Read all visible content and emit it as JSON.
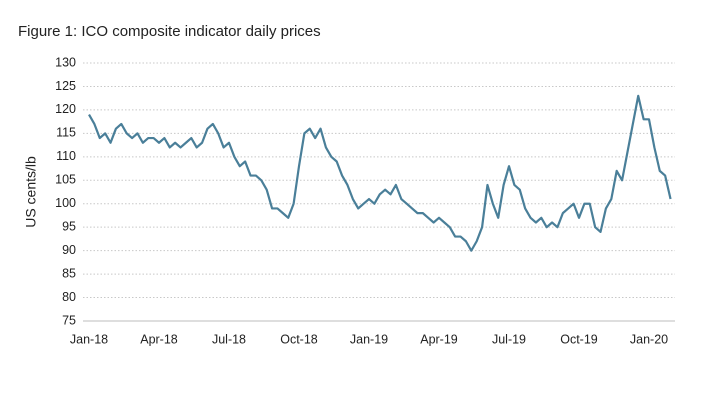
{
  "chart_data": {
    "type": "line",
    "title": "Figure 1: ICO composite indicator daily prices",
    "y_label": "US cents/lb",
    "categories": [
      "Jan-18",
      null,
      null,
      null,
      null,
      null,
      null,
      null,
      null,
      null,
      null,
      null,
      null,
      "Apr-18",
      null,
      null,
      null,
      null,
      null,
      null,
      null,
      null,
      null,
      null,
      null,
      null,
      "Jul-18",
      null,
      null,
      null,
      null,
      null,
      null,
      null,
      null,
      null,
      null,
      null,
      null,
      "Oct-18",
      null,
      null,
      null,
      null,
      null,
      null,
      null,
      null,
      null,
      null,
      null,
      null,
      "Jan-19",
      null,
      null,
      null,
      null,
      null,
      null,
      null,
      null,
      null,
      null,
      null,
      null,
      "Apr-19",
      null,
      null,
      null,
      null,
      null,
      null,
      null,
      null,
      null,
      null,
      null,
      null,
      "Jul-19",
      null,
      null,
      null,
      null,
      null,
      null,
      null,
      null,
      null,
      null,
      null,
      null,
      "Oct-19",
      null,
      null,
      null,
      null,
      null,
      null,
      null,
      null,
      null,
      null,
      null,
      null,
      "Jan-20",
      null,
      null,
      null,
      null
    ],
    "series": [
      {
        "name": "ICO composite indicator",
        "color": "#4a7f99",
        "values": [
          119,
          117,
          114,
          115,
          113,
          116,
          117,
          115,
          114,
          115,
          113,
          114,
          114,
          113,
          114,
          112,
          113,
          112,
          113,
          114,
          112,
          113,
          116,
          117,
          115,
          112,
          113,
          110,
          108,
          109,
          106,
          106,
          105,
          103,
          99,
          99,
          98,
          97,
          100,
          108,
          115,
          116,
          114,
          116,
          112,
          110,
          109,
          106,
          104,
          101,
          99,
          100,
          101,
          100,
          102,
          103,
          102,
          104,
          101,
          100,
          99,
          98,
          98,
          97,
          96,
          97,
          96,
          95,
          93,
          93,
          92,
          90,
          92,
          95,
          104,
          100,
          97,
          104,
          108,
          104,
          103,
          99,
          97,
          96,
          97,
          95,
          96,
          95,
          98,
          99,
          100,
          97,
          100,
          100,
          95,
          94,
          99,
          101,
          107,
          105,
          111,
          117,
          123,
          118,
          118,
          112,
          107,
          106,
          101
        ]
      }
    ],
    "ylim": [
      75,
      130
    ],
    "yticks": [
      75,
      80,
      85,
      90,
      95,
      100,
      105,
      110,
      115,
      120,
      125,
      130
    ],
    "grid": true
  }
}
